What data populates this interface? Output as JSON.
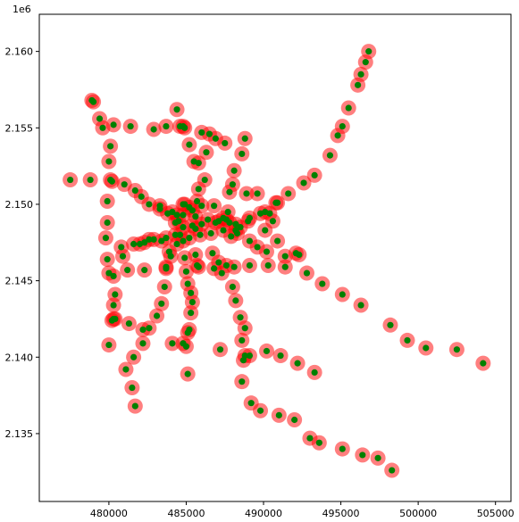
{
  "chart_data": {
    "type": "scatter",
    "title": "",
    "xlabel": "",
    "ylabel": "",
    "y_offset_label": "1e6",
    "xlim": [
      475500,
      506000
    ],
    "ylim": [
      2.13056,
      2.16243
    ],
    "x_ticks": [
      480000,
      485000,
      490000,
      495000,
      500000,
      505000
    ],
    "x_tick_labels": [
      "480000",
      "485000",
      "490000",
      "495000",
      "500000",
      "505000"
    ],
    "y_ticks": [
      2.135,
      2.14,
      2.145,
      2.15,
      2.155,
      2.16
    ],
    "y_tick_labels": [
      "2.135",
      "2.140",
      "2.145",
      "2.150",
      "2.155",
      "2.160"
    ],
    "grid": false,
    "legend": "none",
    "colors": {
      "halo": "#ff0000",
      "halo_opacity": 0.5,
      "point": "#008000"
    },
    "series": [
      {
        "values": [
          [
            496800,
            2.16
          ],
          [
            496600,
            2.1593
          ],
          [
            496300,
            2.1585
          ],
          [
            496100,
            2.1578
          ],
          [
            495500,
            2.1563
          ],
          [
            495100,
            2.1551
          ],
          [
            494800,
            2.1545
          ],
          [
            494300,
            2.1532
          ],
          [
            493300,
            2.1519
          ],
          [
            492600,
            2.1514
          ],
          [
            491600,
            2.1507
          ],
          [
            490800,
            2.1501
          ],
          [
            490100,
            2.1495
          ],
          [
            489100,
            2.1491
          ],
          [
            488200,
            2.1487
          ],
          [
            487400,
            2.1483
          ],
          [
            486600,
            2.1481
          ],
          [
            485900,
            2.148
          ],
          [
            485200,
            2.1478
          ],
          [
            484600,
            2.148
          ],
          [
            483700,
            2.1478
          ],
          [
            482900,
            2.1477
          ],
          [
            482300,
            2.1475
          ],
          [
            481600,
            2.1474
          ],
          [
            480800,
            2.1472
          ],
          [
            477500,
            2.1516
          ],
          [
            478800,
            2.1516
          ],
          [
            480100,
            2.1516
          ],
          [
            481000,
            2.1513
          ],
          [
            481700,
            2.1509
          ],
          [
            482100,
            2.1505
          ],
          [
            482600,
            2.15
          ],
          [
            483300,
            2.1497
          ],
          [
            484100,
            2.1495
          ],
          [
            484800,
            2.1493
          ],
          [
            485600,
            2.1492
          ],
          [
            486400,
            2.149
          ],
          [
            487100,
            2.1489
          ],
          [
            487800,
            2.1488
          ],
          [
            488500,
            2.1485
          ],
          [
            479000,
            2.1567
          ],
          [
            478900,
            2.1568
          ],
          [
            479400,
            2.1556
          ],
          [
            479600,
            2.155
          ],
          [
            480300,
            2.1552
          ],
          [
            480100,
            2.1538
          ],
          [
            480000,
            2.1528
          ],
          [
            480200,
            2.1515
          ],
          [
            479900,
            2.1502
          ],
          [
            479900,
            2.1488
          ],
          [
            479800,
            2.1478
          ],
          [
            479900,
            2.1464
          ],
          [
            480000,
            2.1455
          ],
          [
            480300,
            2.1453
          ],
          [
            480400,
            2.1441
          ],
          [
            480300,
            2.1434
          ],
          [
            480300,
            2.1425
          ],
          [
            480200,
            2.1424
          ],
          [
            480000,
            2.1408
          ],
          [
            481400,
            2.1551
          ],
          [
            482900,
            2.1549
          ],
          [
            483700,
            2.1551
          ],
          [
            484600,
            2.1551
          ],
          [
            484900,
            2.155
          ],
          [
            486000,
            2.1547
          ],
          [
            486900,
            2.1543
          ],
          [
            487500,
            2.154
          ],
          [
            488800,
            2.1543
          ],
          [
            488600,
            2.1533
          ],
          [
            488100,
            2.1522
          ],
          [
            488000,
            2.1513
          ],
          [
            487800,
            2.1508
          ],
          [
            487700,
            2.1495
          ],
          [
            487600,
            2.149
          ],
          [
            484400,
            2.1562
          ],
          [
            484800,
            2.1551
          ],
          [
            485200,
            2.1539
          ],
          [
            485500,
            2.1528
          ],
          [
            485800,
            2.1527
          ],
          [
            486200,
            2.1516
          ],
          [
            485800,
            2.151
          ],
          [
            484900,
            2.15
          ],
          [
            484500,
            2.1489
          ],
          [
            484800,
            2.1476
          ],
          [
            484900,
            2.1465
          ],
          [
            485000,
            2.1456
          ],
          [
            485100,
            2.1448
          ],
          [
            485300,
            2.1442
          ],
          [
            485400,
            2.1436
          ],
          [
            485300,
            2.1429
          ],
          [
            485100,
            2.1416
          ],
          [
            485000,
            2.1407
          ],
          [
            485100,
            2.1389
          ],
          [
            486500,
            2.1546
          ],
          [
            486300,
            2.1534
          ],
          [
            485700,
            2.1502
          ],
          [
            485400,
            2.1496
          ],
          [
            485600,
            2.1484
          ],
          [
            485600,
            2.1467
          ],
          [
            485700,
            2.146
          ],
          [
            480900,
            2.1466
          ],
          [
            481200,
            2.1457
          ],
          [
            482300,
            2.1457
          ],
          [
            483700,
            2.1458
          ],
          [
            484000,
            2.1466
          ],
          [
            484400,
            2.1474
          ],
          [
            485800,
            2.1459
          ],
          [
            486800,
            2.1458
          ],
          [
            487100,
            2.1462
          ],
          [
            488100,
            2.1459
          ],
          [
            489100,
            2.146
          ],
          [
            490300,
            2.146
          ],
          [
            491400,
            2.1459
          ],
          [
            492800,
            2.1455
          ],
          [
            493800,
            2.1448
          ],
          [
            495100,
            2.1441
          ],
          [
            496300,
            2.1434
          ],
          [
            498200,
            2.1421
          ],
          [
            499300,
            2.1411
          ],
          [
            500500,
            2.1406
          ],
          [
            502500,
            2.1405
          ],
          [
            504200,
            2.1396
          ],
          [
            482000,
            2.1474
          ],
          [
            482600,
            2.1477
          ],
          [
            483400,
            2.1476
          ],
          [
            484300,
            2.148
          ],
          [
            484800,
            2.1485
          ],
          [
            485400,
            2.1486
          ],
          [
            486000,
            2.1487
          ],
          [
            486900,
            2.1488
          ],
          [
            487400,
            2.1491
          ],
          [
            488200,
            2.1483
          ],
          [
            489100,
            2.1476
          ],
          [
            489600,
            2.1472
          ],
          [
            490200,
            2.1469
          ],
          [
            490900,
            2.1476
          ],
          [
            491400,
            2.1466
          ],
          [
            492100,
            2.1468
          ],
          [
            492300,
            2.1467
          ],
          [
            488000,
            2.1446
          ],
          [
            488200,
            2.1437
          ],
          [
            488500,
            2.1426
          ],
          [
            488800,
            2.1419
          ],
          [
            488600,
            2.1411
          ],
          [
            488700,
            2.1398
          ],
          [
            489100,
            2.1401
          ],
          [
            490200,
            2.1404
          ],
          [
            491100,
            2.1401
          ],
          [
            492200,
            2.1396
          ],
          [
            493300,
            2.139
          ],
          [
            488600,
            2.1384
          ],
          [
            489200,
            2.137
          ],
          [
            489800,
            2.1365
          ],
          [
            491000,
            2.1362
          ],
          [
            492000,
            2.1359
          ],
          [
            493000,
            2.1347
          ],
          [
            493600,
            2.1344
          ],
          [
            495100,
            2.134
          ],
          [
            496400,
            2.1336
          ],
          [
            497400,
            2.1334
          ],
          [
            498300,
            2.1326
          ],
          [
            483900,
            2.1469
          ],
          [
            483700,
            2.1459
          ],
          [
            483600,
            2.1446
          ],
          [
            483400,
            2.1435
          ],
          [
            483100,
            2.1427
          ],
          [
            482600,
            2.1419
          ],
          [
            482200,
            2.1418
          ],
          [
            481300,
            2.1422
          ],
          [
            480400,
            2.1425
          ],
          [
            482200,
            2.1409
          ],
          [
            481600,
            2.14
          ],
          [
            481100,
            2.1392
          ],
          [
            481500,
            2.138
          ],
          [
            481700,
            2.1368
          ],
          [
            484100,
            2.1409
          ],
          [
            484800,
            2.1409
          ],
          [
            485200,
            2.1418
          ],
          [
            487200,
            2.1405
          ],
          [
            488800,
            2.1401
          ],
          [
            486700,
            2.1468
          ],
          [
            487300,
            2.1455
          ],
          [
            487600,
            2.146
          ],
          [
            487900,
            2.1479
          ],
          [
            488300,
            2.1481
          ],
          [
            489000,
            2.1489
          ],
          [
            489800,
            2.1494
          ],
          [
            490400,
            2.1494
          ],
          [
            490900,
            2.1501
          ],
          [
            490600,
            2.1489
          ],
          [
            490100,
            2.1483
          ],
          [
            489600,
            2.1507
          ],
          [
            488900,
            2.1507
          ],
          [
            486800,
            2.1499
          ],
          [
            486000,
            2.1499
          ],
          [
            485200,
            2.1498
          ],
          [
            484800,
            2.15
          ],
          [
            484400,
            2.1493
          ],
          [
            484300,
            2.1488
          ],
          [
            483800,
            2.1494
          ],
          [
            483300,
            2.1499
          ]
        ]
      }
    ]
  }
}
